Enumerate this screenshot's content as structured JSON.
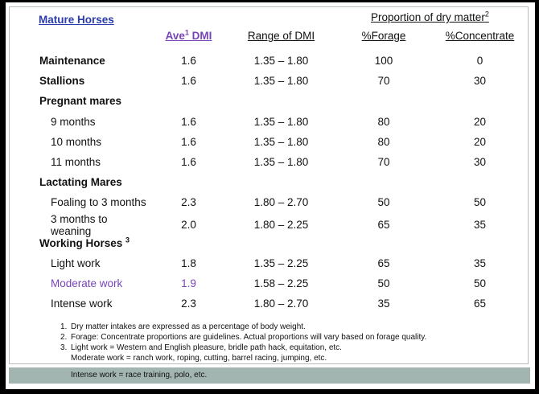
{
  "colors": {
    "link_blue": "#2c3cae",
    "accent_purple": "#7744b8",
    "highlight_teal": "#a2b5b1"
  },
  "header": {
    "title_link": "Mature Horses",
    "proportion_label": "Proportion of dry matter",
    "proportion_sup": "2",
    "col_ave_prefix": "Ave",
    "col_ave_sup": "1",
    "col_ave_suffix": " DMI",
    "col_range": "Range of DMI",
    "col_forage": "%Forage",
    "col_concentrate": "%Concentrate"
  },
  "chart_data": {
    "type": "table",
    "title": "Mature Horses — Dry Matter Intake",
    "columns": [
      "",
      "Ave DMI",
      "Range of DMI",
      "%Forage",
      "%Concentrate"
    ],
    "rows": [
      {
        "label": "Maintenance",
        "type": "main",
        "ave": "1.6",
        "range": "1.35 – 1.80",
        "forage": "100",
        "concentrate": "0"
      },
      {
        "label": "Stallions",
        "type": "main",
        "ave": "1.6",
        "range": "1.35 – 1.80",
        "forage": "70",
        "concentrate": "30"
      },
      {
        "label": "Pregnant mares",
        "type": "group",
        "ave": "",
        "range": "",
        "forage": "",
        "concentrate": ""
      },
      {
        "label": "9 months",
        "type": "sub",
        "ave": "1.6",
        "range": "1.35 – 1.80",
        "forage": "80",
        "concentrate": "20"
      },
      {
        "label": "10 months",
        "type": "sub",
        "ave": "1.6",
        "range": "1.35 – 1.80",
        "forage": "80",
        "concentrate": "20"
      },
      {
        "label": "11 months",
        "type": "sub",
        "ave": "1.6",
        "range": "1.35 – 1.80",
        "forage": "70",
        "concentrate": "30"
      },
      {
        "label": "Lactating Mares",
        "type": "group",
        "ave": "",
        "range": "",
        "forage": "",
        "concentrate": ""
      },
      {
        "label": "Foaling to 3 months",
        "type": "sub",
        "ave": "2.3",
        "range": "1.80 – 2.70",
        "forage": "50",
        "concentrate": "50"
      },
      {
        "label": "3 months to weaning",
        "type": "sub",
        "ave": "2.0",
        "range": "1.80 – 2.25",
        "forage": "65",
        "concentrate": "35"
      },
      {
        "label": "Working Horses",
        "label_sup": "3",
        "type": "group",
        "ave": "",
        "range": "",
        "forage": "",
        "concentrate": ""
      },
      {
        "label": "Light work",
        "type": "sub",
        "ave": "1.8",
        "range": "1.35 – 2.25",
        "forage": "65",
        "concentrate": "35"
      },
      {
        "label": "Moderate work",
        "type": "sub",
        "accent": true,
        "ave": "1.9",
        "range": "1.58 – 2.25",
        "forage": "50",
        "concentrate": "50"
      },
      {
        "label": "Intense work",
        "type": "sub",
        "ave": "2.3",
        "range": "1.80 – 2.70",
        "forage": "35",
        "concentrate": "65"
      }
    ]
  },
  "footnotes": [
    {
      "num": "1.",
      "text": "Dry matter intakes are expressed as a percentage of body weight.",
      "highlight": false
    },
    {
      "num": "2.",
      "text": "Forage: Concentrate proportions are guidelines. Actual proportions will vary based on forage quality.",
      "highlight": false
    },
    {
      "num": "3.",
      "text": "Light work = Western and English pleasure, bridle path hack, equitation, etc.",
      "highlight": false
    },
    {
      "num": "",
      "text": "Moderate work = ranch work, roping, cutting, barrel racing, jumping, etc.",
      "highlight": false
    },
    {
      "num": "",
      "text": "Intense work = race training, polo, etc.",
      "highlight": true
    }
  ]
}
